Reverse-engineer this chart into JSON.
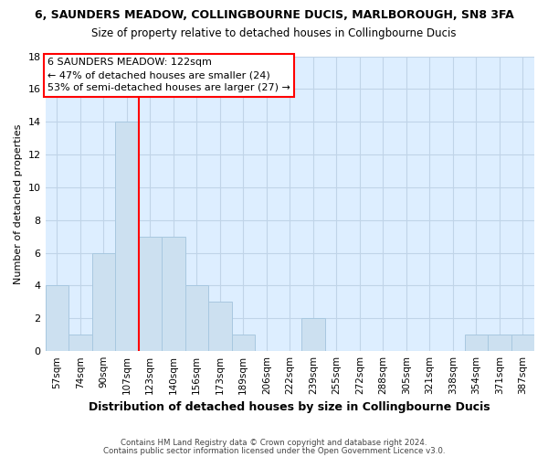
{
  "title": "6, SAUNDERS MEADOW, COLLINGBOURNE DUCIS, MARLBOROUGH, SN8 3FA",
  "subtitle": "Size of property relative to detached houses in Collingbourne Ducis",
  "xlabel": "Distribution of detached houses by size in Collingbourne Ducis",
  "ylabel": "Number of detached properties",
  "bin_labels": [
    "57sqm",
    "74sqm",
    "90sqm",
    "107sqm",
    "123sqm",
    "140sqm",
    "156sqm",
    "173sqm",
    "189sqm",
    "206sqm",
    "222sqm",
    "239sqm",
    "255sqm",
    "272sqm",
    "288sqm",
    "305sqm",
    "321sqm",
    "338sqm",
    "354sqm",
    "371sqm",
    "387sqm"
  ],
  "bar_heights": [
    4,
    1,
    6,
    14,
    7,
    7,
    4,
    3,
    1,
    0,
    0,
    2,
    0,
    0,
    0,
    0,
    0,
    0,
    1,
    1,
    1
  ],
  "bar_color": "#cce0f0",
  "bar_edge_color": "#a8c8e0",
  "vline_x": 3.5,
  "vline_color": "red",
  "annotation_line1": "6 SAUNDERS MEADOW: 122sqm",
  "annotation_line2": "← 47% of detached houses are smaller (24)",
  "annotation_line3": "53% of semi-detached houses are larger (27) →",
  "ylim": [
    0,
    18
  ],
  "yticks": [
    0,
    2,
    4,
    6,
    8,
    10,
    12,
    14,
    16,
    18
  ],
  "footer_line1": "Contains HM Land Registry data © Crown copyright and database right 2024.",
  "footer_line2": "Contains public sector information licensed under the Open Government Licence v3.0.",
  "background_color": "#ffffff",
  "axes_bg_color": "#ddeeff",
  "grid_color": "#c0d4e8",
  "title_fontsize": 9,
  "subtitle_fontsize": 8.5,
  "annotation_fontsize": 8,
  "ylabel_fontsize": 8,
  "xlabel_fontsize": 9
}
